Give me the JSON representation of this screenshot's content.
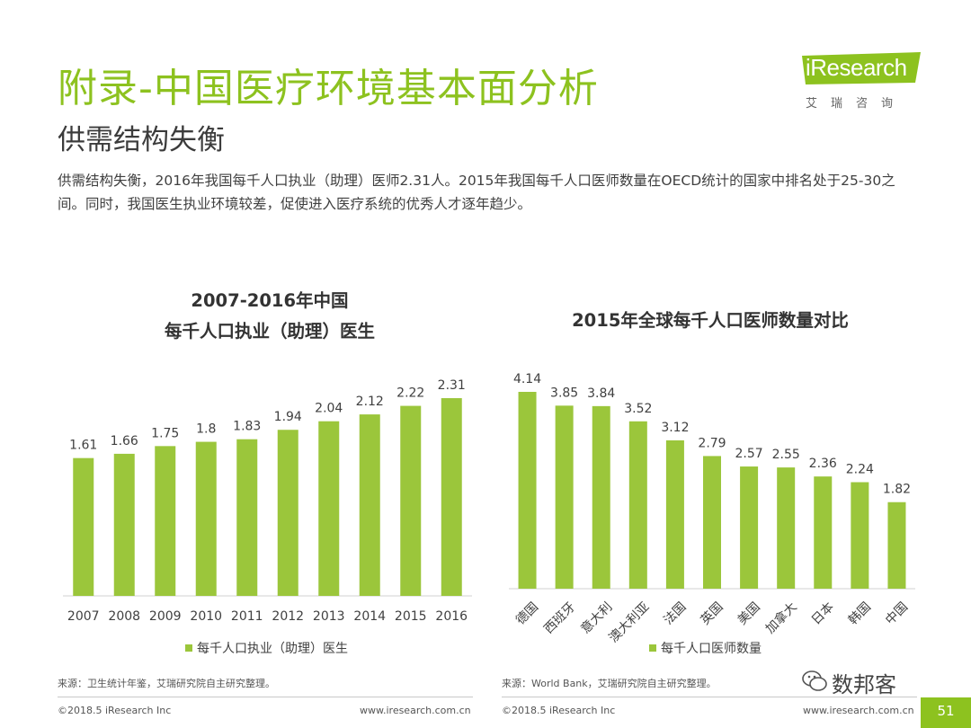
{
  "page": {
    "title": "附录-中国医疗环境基本面分析",
    "subtitle": "供需结构失衡",
    "description": "供需结构失衡，2016年我国每千人口执业（助理）医师2.31人。2015年我国每千人口医师数量在OECD统计的国家中排名处于25-30之间。同时，我国医生执业环境较差，促使进入医疗系统的优秀人才逐年趋少。",
    "logo_text": "iResearch",
    "logo_cn": "艾瑞咨询",
    "footer_left_1": "©2018.5 iResearch Inc",
    "footer_right_1": "www.iresearch.com.cn",
    "footer_left_2": "©2018.5 iResearch Inc",
    "footer_right_2": "www.iresearch.com.cn",
    "page_number": "51",
    "watermark": "数邦客",
    "accent_color": "#8DC21F",
    "bar_color": "#9BC63B"
  },
  "chart_data": [
    {
      "type": "bar",
      "title_line1": "2007-2016年中国",
      "title_line2": "每千人口执业（助理）医生",
      "categories": [
        "2007",
        "2008",
        "2009",
        "2010",
        "2011",
        "2012",
        "2013",
        "2014",
        "2015",
        "2016"
      ],
      "values": [
        1.61,
        1.66,
        1.75,
        1.8,
        1.83,
        1.94,
        2.04,
        2.12,
        2.22,
        2.31
      ],
      "value_labels": [
        "1.61",
        "1.66",
        "1.75",
        "1.8",
        "1.83",
        "1.94",
        "2.04",
        "2.12",
        "2.22",
        "2.31"
      ],
      "legend": "每千人口执业（助理）医生",
      "source": "来源：卫生统计年鉴，艾瑞研究院自主研究整理。",
      "ylim": [
        0,
        2.5
      ]
    },
    {
      "type": "bar",
      "title": "2015年全球每千人口医师数量对比",
      "categories": [
        "德国",
        "西班牙",
        "意大利",
        "澳大利亚",
        "法国",
        "英国",
        "美国",
        "加拿大",
        "日本",
        "韩国",
        "中国"
      ],
      "values": [
        4.14,
        3.85,
        3.84,
        3.52,
        3.12,
        2.79,
        2.57,
        2.55,
        2.36,
        2.24,
        1.82
      ],
      "value_labels": [
        "4.14",
        "3.85",
        "3.84",
        "3.52",
        "3.12",
        "2.79",
        "2.57",
        "2.55",
        "2.36",
        "2.24",
        "1.82"
      ],
      "legend": "每千人口医师数量",
      "source": "来源：World Bank，艾瑞研究院自主研究整理。",
      "ylim": [
        0,
        4.14
      ]
    }
  ]
}
